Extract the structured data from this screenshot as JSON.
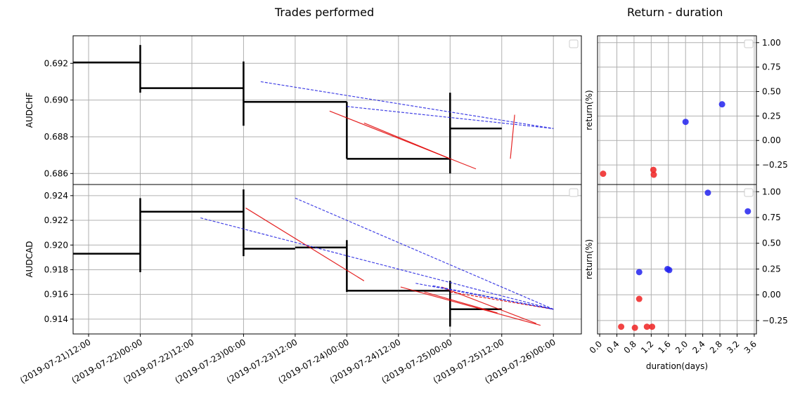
{
  "titles": {
    "left": "Trades performed",
    "right": "Return - duration"
  },
  "chart_data": [
    {
      "type": "line",
      "panel": "AUDCHF",
      "ylabel": "AUDCHF",
      "x_axis": "datetime",
      "xlim": [
        "2019-07-21 08:24",
        "2019-07-26 06:30"
      ],
      "ylim": [
        0.6854,
        0.6935
      ],
      "yticks": [
        0.686,
        0.688,
        0.69,
        0.692
      ],
      "ytick_labels": [
        "0.686",
        "0.688",
        "0.690",
        "0.692"
      ],
      "grid": true,
      "legend": "top-right (empty)",
      "bars_color": "#000000",
      "bars": [
        {
          "t0": "2019-07-21 00:00",
          "t1": "2019-07-22 00:00",
          "close": 0.69205,
          "next": 0.6908,
          "jump_high": 0.693,
          "jump_low": 0.6904
        },
        {
          "t0": "2019-07-22 00:00",
          "t1": "2019-07-22 12:00",
          "close": 0.69065
        },
        {
          "t0": "2019-07-22 12:00",
          "t1": "2019-07-23 00:00",
          "close": 0.69065,
          "next": 0.6899,
          "jump_high": 0.6921,
          "jump_low": 0.6886
        },
        {
          "t0": "2019-07-23 00:00",
          "t1": "2019-07-23 12:00",
          "close": 0.6899
        },
        {
          "t0": "2019-07-23 12:00",
          "t1": "2019-07-24 00:00",
          "close": 0.6899,
          "next": 0.6868,
          "jump_high": 0.6899,
          "jump_low": 0.6868
        },
        {
          "t0": "2019-07-24 00:00",
          "t1": "2019-07-24 12:00",
          "close": 0.6868
        },
        {
          "t0": "2019-07-24 12:00",
          "t1": "2019-07-25 00:00",
          "close": 0.6868,
          "next": 0.68845,
          "jump_high": 0.6904,
          "jump_low": 0.686
        },
        {
          "t0": "2019-07-25 00:00",
          "t1": "2019-07-25 12:00",
          "close": 0.68845
        }
      ],
      "trades": [
        {
          "result": "loss",
          "color": "#e00000",
          "style": "solid",
          "t0": "2019-07-23 20:00",
          "y0": 0.6894,
          "t1": "2019-07-25 06:00",
          "y1": 0.68625
        },
        {
          "result": "loss",
          "color": "#e00000",
          "style": "solid",
          "t0": "2019-07-24 04:00",
          "y0": 0.68875,
          "t1": "2019-07-25 00:00",
          "y1": 0.6868
        },
        {
          "result": "loss",
          "color": "#e00000",
          "style": "solid",
          "t0": "2019-07-25 14:00",
          "y0": 0.6868,
          "t1": "2019-07-25 15:00",
          "y1": 0.6892
        },
        {
          "result": "win",
          "color": "#2020e0",
          "style": "dashed",
          "t0": "2019-07-23 04:00",
          "y0": 0.691,
          "t1": "2019-07-26 00:00",
          "y1": 0.68845
        },
        {
          "result": "win",
          "color": "#2020e0",
          "style": "dashed",
          "t0": "2019-07-24 00:00",
          "y0": 0.68965,
          "t1": "2019-07-26 00:00",
          "y1": 0.68845
        }
      ]
    },
    {
      "type": "line",
      "panel": "AUDCAD",
      "ylabel": "AUDCAD",
      "x_axis": "datetime",
      "xlim": [
        "2019-07-21 08:24",
        "2019-07-26 06:30"
      ],
      "ylim": [
        0.9128,
        0.9249
      ],
      "yticks": [
        0.914,
        0.916,
        0.918,
        0.92,
        0.922,
        0.924
      ],
      "ytick_labels": [
        "0.914",
        "0.916",
        "0.918",
        "0.920",
        "0.922",
        "0.924"
      ],
      "xtick_labels": [
        "(2019-07-21)12:00",
        "(2019-07-22)00:00",
        "(2019-07-22)12:00",
        "(2019-07-23)00:00",
        "(2019-07-23)12:00",
        "(2019-07-24)00:00",
        "(2019-07-24)12:00",
        "(2019-07-25)00:00",
        "(2019-07-25)12:00",
        "(2019-07-26)00:00"
      ],
      "grid": true,
      "legend": "top-right (empty)",
      "bars_color": "#000000",
      "bars": [
        {
          "t0": "2019-07-21 00:00",
          "t1": "2019-07-22 00:00",
          "close": 0.9193,
          "next": 0.9227,
          "jump_high": 0.9238,
          "jump_low": 0.9178
        },
        {
          "t0": "2019-07-22 00:00",
          "t1": "2019-07-22 12:00",
          "close": 0.9227
        },
        {
          "t0": "2019-07-22 12:00",
          "t1": "2019-07-23 00:00",
          "close": 0.9227,
          "next": 0.9197,
          "jump_high": 0.9245,
          "jump_low": 0.9191
        },
        {
          "t0": "2019-07-23 00:00",
          "t1": "2019-07-23 12:00",
          "close": 0.9197
        },
        {
          "t0": "2019-07-23 12:00",
          "t1": "2019-07-24 00:00",
          "close": 0.9198,
          "next": 0.9163,
          "jump_high": 0.9204,
          "jump_low": 0.9162
        },
        {
          "t0": "2019-07-24 00:00",
          "t1": "2019-07-24 12:00",
          "close": 0.9163
        },
        {
          "t0": "2019-07-24 12:00",
          "t1": "2019-07-25 00:00",
          "close": 0.9163,
          "next": 0.9148,
          "jump_high": 0.9171,
          "jump_low": 0.9134
        },
        {
          "t0": "2019-07-25 00:00",
          "t1": "2019-07-25 12:00",
          "close": 0.9148
        }
      ],
      "trades": [
        {
          "result": "loss",
          "color": "#e00000",
          "style": "solid",
          "t0": "2019-07-23 00:30",
          "y0": 0.923,
          "t1": "2019-07-24 04:00",
          "y1": 0.9171
        },
        {
          "result": "loss",
          "color": "#e00000",
          "style": "solid",
          "t0": "2019-07-24 12:30",
          "y0": 0.9166,
          "t1": "2019-07-25 21:00",
          "y1": 0.9135
        },
        {
          "result": "loss",
          "color": "#e00000",
          "style": "solid",
          "t0": "2019-07-24 22:00",
          "y0": 0.9166,
          "t1": "2019-07-25 20:00",
          "y1": 0.91365
        },
        {
          "result": "loss",
          "color": "#e00000",
          "style": "solid",
          "t0": "2019-07-24 18:00",
          "y0": 0.9162,
          "t1": "2019-07-25 11:00",
          "y1": 0.9145
        },
        {
          "result": "loss",
          "color": "#e00000",
          "style": "dashed",
          "t0": "2019-07-25 00:00",
          "y0": 0.9162,
          "t1": "2019-07-26 00:00",
          "y1": 0.9148
        },
        {
          "result": "win",
          "color": "#2020e0",
          "style": "dashed",
          "t0": "2019-07-22 14:00",
          "y0": 0.9222,
          "t1": "2019-07-26 00:00",
          "y1": 0.9148
        },
        {
          "result": "win",
          "color": "#2020e0",
          "style": "dashed",
          "t0": "2019-07-23 12:00",
          "y0": 0.9238,
          "t1": "2019-07-26 00:00",
          "y1": 0.9148
        },
        {
          "result": "win",
          "color": "#2020e0",
          "style": "dashed",
          "t0": "2019-07-24 16:00",
          "y0": 0.9169,
          "t1": "2019-07-26 00:00",
          "y1": 0.9148
        },
        {
          "result": "win",
          "color": "#2020e0",
          "style": "dashed",
          "t0": "2019-07-24 20:00",
          "y0": 0.9167,
          "t1": "2019-07-26 00:00",
          "y1": 0.9148
        }
      ]
    },
    {
      "type": "scatter",
      "panel": "AUDCHF return-duration",
      "ylabel": "return(%)",
      "xlim": [
        -0.05,
        3.65
      ],
      "ylim": [
        -0.45,
        1.07
      ],
      "yticks": [
        -0.25,
        0.0,
        0.25,
        0.5,
        0.75,
        1.0
      ],
      "ytick_labels": [
        "−0.25",
        "0.00",
        "0.25",
        "0.50",
        "0.75",
        "1.00"
      ],
      "grid": true,
      "legend": "top-right (empty)",
      "series": [
        {
          "color": "#ee2222",
          "points": [
            [
              0.08,
              -0.34
            ],
            [
              1.25,
              -0.3
            ],
            [
              1.26,
              -0.35
            ]
          ]
        },
        {
          "color": "#2222ee",
          "points": [
            [
              2.0,
              0.19
            ],
            [
              2.85,
              0.37
            ]
          ]
        }
      ]
    },
    {
      "type": "scatter",
      "panel": "AUDCAD return-duration",
      "xlabel": "duration(days)",
      "ylabel": "return(%)",
      "xlim": [
        -0.05,
        3.65
      ],
      "ylim": [
        -0.38,
        1.07
      ],
      "xticks": [
        0.0,
        0.4,
        0.8,
        1.2,
        1.6,
        2.0,
        2.4,
        2.8,
        3.2,
        3.6
      ],
      "xtick_labels": [
        "0.0",
        "0.4",
        "0.8",
        "1.2",
        "1.6",
        "2.0",
        "2.4",
        "2.8",
        "3.2",
        "3.6"
      ],
      "yticks": [
        -0.25,
        0.0,
        0.25,
        0.5,
        0.75,
        1.0
      ],
      "ytick_labels": [
        "−0.25",
        "0.00",
        "0.25",
        "0.50",
        "0.75",
        "1.00"
      ],
      "grid": true,
      "legend": "top-right (empty)",
      "series": [
        {
          "color": "#ee2222",
          "points": [
            [
              0.5,
              -0.31
            ],
            [
              0.82,
              -0.32
            ],
            [
              1.1,
              -0.31
            ],
            [
              1.22,
              -0.31
            ],
            [
              0.92,
              -0.04
            ]
          ]
        },
        {
          "color": "#2222ee",
          "points": [
            [
              0.92,
              0.22
            ],
            [
              1.58,
              0.25
            ],
            [
              1.62,
              0.24
            ],
            [
              2.52,
              0.99
            ],
            [
              3.45,
              0.81
            ]
          ]
        }
      ]
    }
  ]
}
